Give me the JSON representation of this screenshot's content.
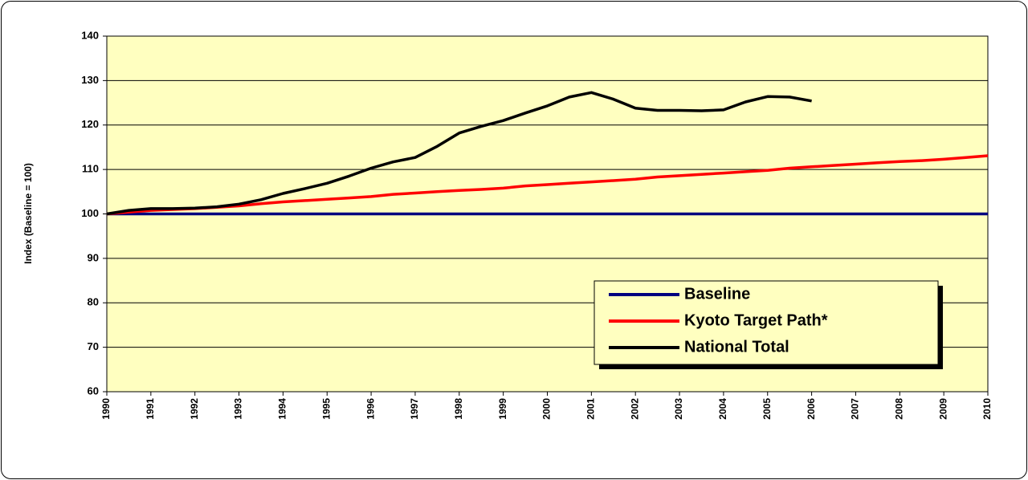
{
  "chart_data": {
    "type": "line",
    "y_label": "Index (Baseline = 100)",
    "x": [
      1990,
      1990.5,
      1991,
      1991.5,
      1992,
      1992.5,
      1993,
      1993.5,
      1994,
      1994.5,
      1995,
      1995.5,
      1996,
      1996.5,
      1997,
      1997.5,
      1998,
      1998.5,
      1999,
      1999.5,
      2000,
      2000.5,
      2001,
      2001.5,
      2002,
      2002.5,
      2003,
      2003.5,
      2004,
      2004.5,
      2005,
      2005.5,
      2006,
      2006.5,
      2007,
      2007.5,
      2008,
      2008.5,
      2009,
      2009.5,
      2010
    ],
    "series": [
      {
        "name": "Baseline",
        "color": "#000080",
        "values": [
          100,
          100,
          100,
          100,
          100,
          100,
          100,
          100,
          100,
          100,
          100,
          100,
          100,
          100,
          100,
          100,
          100,
          100,
          100,
          100,
          100,
          100,
          100,
          100,
          100,
          100,
          100,
          100,
          100,
          100,
          100,
          100,
          100,
          100,
          100,
          100,
          100,
          100,
          100,
          100,
          100
        ]
      },
      {
        "name": "Kyoto Target Path*",
        "color": "#ff0000",
        "values": [
          100,
          100.4,
          100.8,
          101.0,
          101.2,
          101.5,
          101.8,
          102.3,
          102.7,
          103.0,
          103.3,
          103.6,
          103.9,
          104.4,
          104.7,
          105.0,
          105.3,
          105.5,
          105.8,
          106.3,
          106.6,
          106.9,
          107.2,
          107.5,
          107.8,
          108.3,
          108.6,
          108.9,
          109.2,
          109.5,
          109.8,
          110.3,
          110.6,
          110.9,
          111.2,
          111.5,
          111.8,
          112.0,
          112.3,
          112.7,
          113.1
        ]
      },
      {
        "name": "National Total",
        "color": "#000000",
        "values": [
          100,
          100.8,
          101.2,
          101.2,
          101.3,
          101.6,
          102.2,
          103.2,
          104.6,
          105.7,
          106.9,
          108.5,
          110.3,
          111.7,
          112.7,
          115.2,
          118.2,
          119.7,
          121.0,
          122.7,
          124.3,
          126.3,
          127.3,
          125.8,
          123.8,
          123.3,
          123.3,
          123.2,
          123.4,
          125.2,
          126.4,
          126.3,
          125.4,
          null,
          null,
          null,
          null,
          null,
          null,
          null,
          null
        ]
      }
    ],
    "xlim": [
      1990,
      2010
    ],
    "xticks": [
      1990,
      1991,
      1992,
      1993,
      1994,
      1995,
      1996,
      1997,
      1998,
      1999,
      2000,
      2001,
      2002,
      2003,
      2004,
      2005,
      2006,
      2007,
      2008,
      2009,
      2010
    ],
    "ylim": [
      60,
      140
    ],
    "yticks": [
      60,
      70,
      80,
      90,
      100,
      110,
      120,
      130,
      140
    ],
    "grid": true,
    "plot_background": "#ffffc0"
  }
}
